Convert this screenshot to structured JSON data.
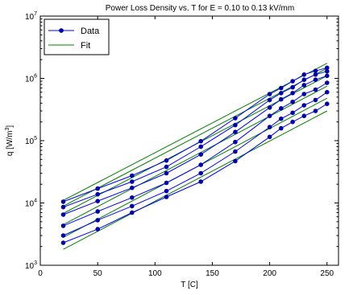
{
  "chart_data": {
    "type": "line",
    "title": "Power Loss Density vs. T for E = 0.10 to 0.13 kV/mm",
    "xlabel": "T [C]",
    "ylabel": "q [W/m",
    "ylabel_sup": "3",
    "ylabel_end": "]",
    "xlim": [
      0,
      260
    ],
    "ylim": [
      1000,
      10000000
    ],
    "yscale": "log",
    "x_ticks": [
      0,
      50,
      100,
      150,
      200,
      250
    ],
    "x_tick_labels": [
      "0",
      "50",
      "100",
      "150",
      "200",
      "250"
    ],
    "y_ticks": [
      1000,
      10000,
      100000,
      1000000,
      10000000
    ],
    "y_tick_labels": [
      {
        "base": "10",
        "exp": "3"
      },
      {
        "base": "10",
        "exp": "4"
      },
      {
        "base": "10",
        "exp": "5"
      },
      {
        "base": "10",
        "exp": "6"
      },
      {
        "base": "10",
        "exp": "7"
      }
    ],
    "grid": false,
    "legend": {
      "placement": "top-left",
      "entries": [
        "Data",
        "Fit"
      ]
    },
    "colors": {
      "data": "#0000ff",
      "fit": "#008000",
      "marker": "#0000aa"
    },
    "x": [
      20,
      50,
      80,
      110,
      140,
      170,
      200,
      210,
      220,
      230,
      240,
      250
    ],
    "series": [
      {
        "values": [
          10500,
          17000,
          27500,
          48000,
          98000,
          230000,
          560000,
          700000,
          900000,
          1150000,
          1320000,
          1480000
        ]
      },
      {
        "values": [
          8600,
          13800,
          22000,
          38000,
          80000,
          178000,
          450000,
          580000,
          720000,
          950000,
          1150000,
          1300000
        ]
      },
      {
        "values": [
          6500,
          10700,
          17500,
          30000,
          60000,
          138000,
          340000,
          460000,
          580000,
          780000,
          950000,
          1100000
        ]
      },
      {
        "values": [
          4300,
          7300,
          12200,
          21000,
          41000,
          95000,
          250000,
          330000,
          420000,
          560000,
          660000,
          850000
        ]
      },
      {
        "values": [
          3000,
          5300,
          8900,
          15500,
          30000,
          67000,
          165000,
          225000,
          280000,
          370000,
          450000,
          600000
        ]
      },
      {
        "values": [
          2300,
          3800,
          7000,
          12500,
          22000,
          47000,
          115000,
          158000,
          200000,
          250000,
          300000,
          390000
        ]
      }
    ],
    "fits": [
      {
        "x": [
          20,
          250
        ],
        "values": [
          11000,
          1750000
        ]
      },
      {
        "x": [
          20,
          250
        ],
        "values": [
          8900,
          1450000
        ]
      },
      {
        "x": [
          20,
          250
        ],
        "values": [
          6800,
          1100000
        ]
      },
      {
        "x": [
          20,
          250
        ],
        "values": [
          4500,
          750000
        ]
      },
      {
        "x": [
          20,
          250
        ],
        "values": [
          2800,
          480000
        ]
      },
      {
        "x": [
          20,
          250
        ],
        "values": [
          1800,
          300000
        ]
      }
    ]
  }
}
